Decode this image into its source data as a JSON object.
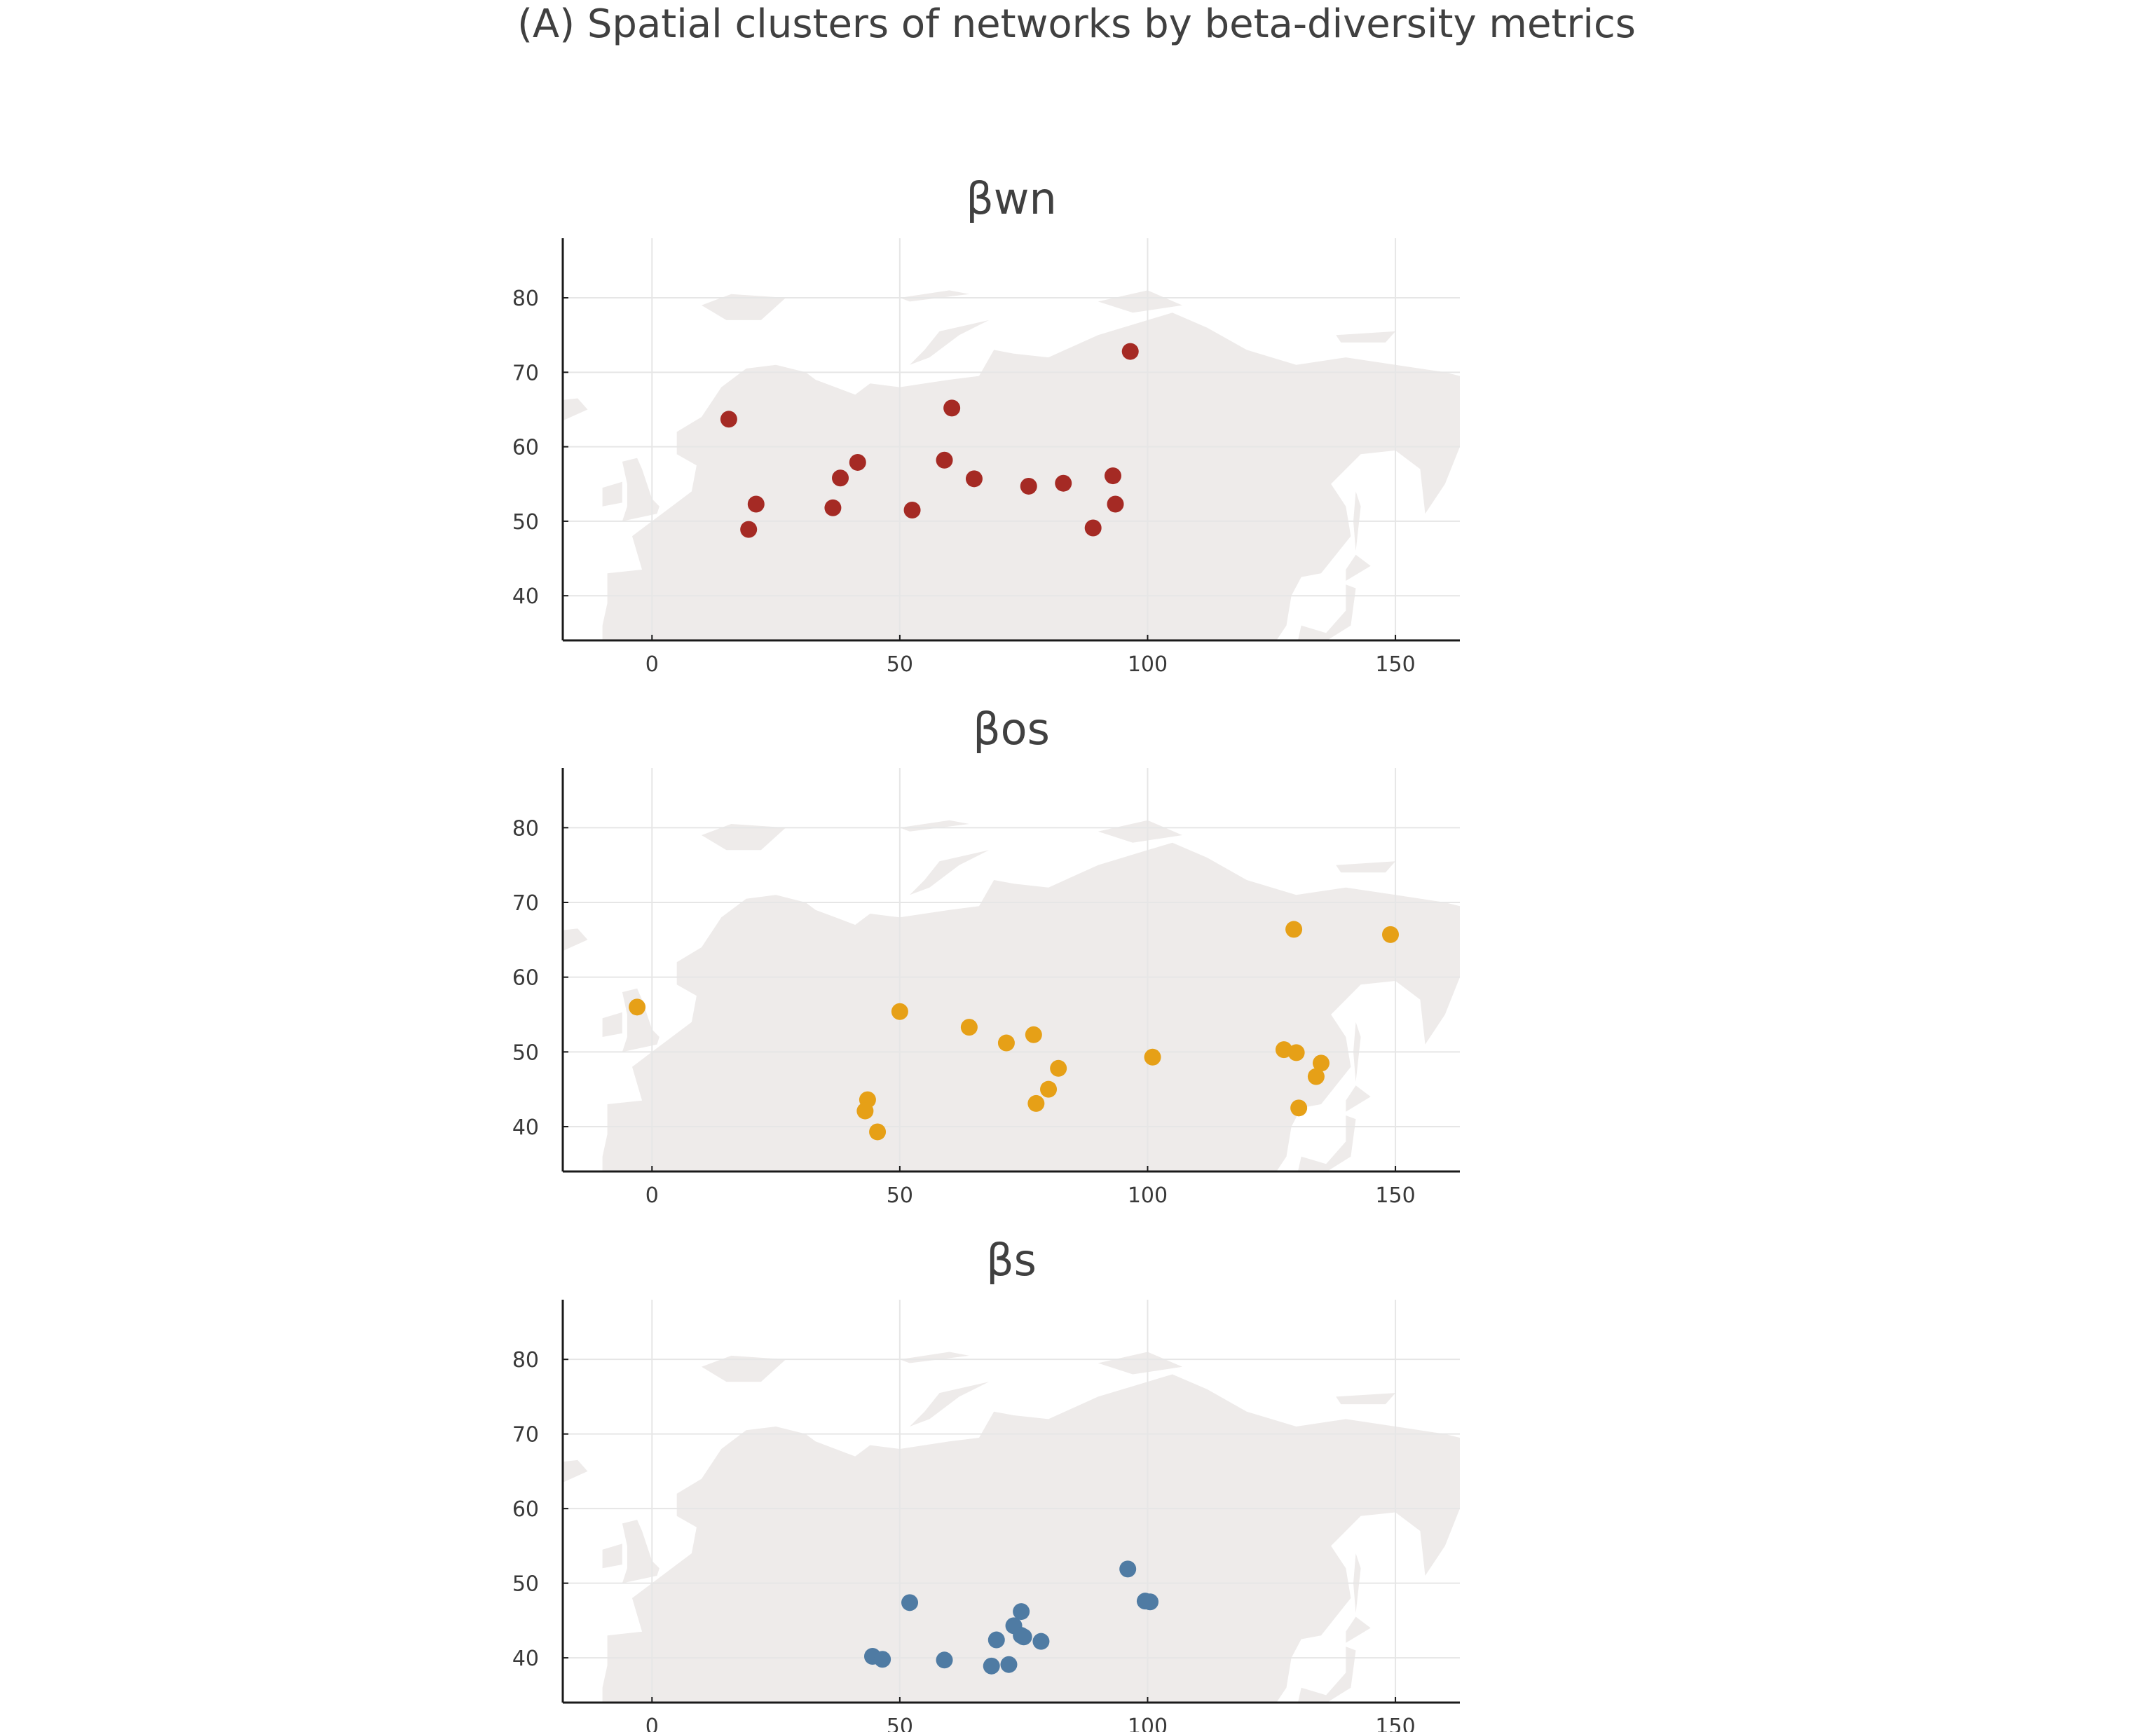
{
  "figure": {
    "title": "(A) Spatial clusters of networks by beta-diversity metrics"
  },
  "colors": {
    "land": "#eeebea",
    "grid": "#e6e6e6",
    "axis": "#1a1a1a"
  },
  "chart_data": [
    {
      "type": "scatter",
      "title": "βwn",
      "xlim": [
        -18,
        163
      ],
      "ylim": [
        34,
        88
      ],
      "xticks": [
        0,
        50,
        100,
        150
      ],
      "yticks": [
        40,
        50,
        60,
        70,
        80
      ],
      "grid": true,
      "basemap": "Eurasia land",
      "color": "#a52a24",
      "points": [
        {
          "x": 15.5,
          "y": 63.7
        },
        {
          "x": 21,
          "y": 52.3
        },
        {
          "x": 19.5,
          "y": 48.9
        },
        {
          "x": 36.5,
          "y": 51.8
        },
        {
          "x": 38,
          "y": 55.8
        },
        {
          "x": 41.5,
          "y": 57.9
        },
        {
          "x": 52.5,
          "y": 51.5
        },
        {
          "x": 59,
          "y": 58.2
        },
        {
          "x": 60.5,
          "y": 65.2
        },
        {
          "x": 65,
          "y": 55.7
        },
        {
          "x": 76,
          "y": 54.7
        },
        {
          "x": 83,
          "y": 55.1
        },
        {
          "x": 89,
          "y": 49.1
        },
        {
          "x": 93,
          "y": 56.1
        },
        {
          "x": 93.5,
          "y": 52.3
        },
        {
          "x": 96.5,
          "y": 72.8
        }
      ]
    },
    {
      "type": "scatter",
      "title": "βos",
      "xlim": [
        -18,
        163
      ],
      "ylim": [
        34,
        88
      ],
      "xticks": [
        0,
        50,
        100,
        150
      ],
      "yticks": [
        40,
        50,
        60,
        70,
        80
      ],
      "grid": true,
      "basemap": "Eurasia land",
      "color": "#e6a017",
      "points": [
        {
          "x": -3,
          "y": 56
        },
        {
          "x": 43.5,
          "y": 43.6
        },
        {
          "x": 43,
          "y": 42.1
        },
        {
          "x": 45.5,
          "y": 39.3
        },
        {
          "x": 50,
          "y": 55.4
        },
        {
          "x": 64,
          "y": 53.3
        },
        {
          "x": 71.5,
          "y": 51.2
        },
        {
          "x": 77,
          "y": 52.3
        },
        {
          "x": 82,
          "y": 47.8
        },
        {
          "x": 80,
          "y": 45
        },
        {
          "x": 77.5,
          "y": 43.1
        },
        {
          "x": 101,
          "y": 49.3
        },
        {
          "x": 127.5,
          "y": 50.3
        },
        {
          "x": 130,
          "y": 49.9
        },
        {
          "x": 135,
          "y": 48.5
        },
        {
          "x": 134,
          "y": 46.7
        },
        {
          "x": 130.5,
          "y": 42.5
        },
        {
          "x": 129.5,
          "y": 66.4
        },
        {
          "x": 149,
          "y": 65.7
        }
      ]
    },
    {
      "type": "scatter",
      "title": "βs",
      "xlim": [
        -18,
        163
      ],
      "ylim": [
        34,
        88
      ],
      "xticks": [
        0,
        50,
        100,
        150
      ],
      "yticks": [
        40,
        50,
        60,
        70,
        80
      ],
      "grid": true,
      "basemap": "Eurasia land",
      "color": "#4f7ba3",
      "points": [
        {
          "x": 44.5,
          "y": 40.2
        },
        {
          "x": 46.5,
          "y": 39.8
        },
        {
          "x": 52,
          "y": 47.4
        },
        {
          "x": 59,
          "y": 39.7
        },
        {
          "x": 68.5,
          "y": 38.9
        },
        {
          "x": 69.5,
          "y": 42.4
        },
        {
          "x": 72,
          "y": 39.1
        },
        {
          "x": 73,
          "y": 44.3
        },
        {
          "x": 74.5,
          "y": 46.2
        },
        {
          "x": 74.5,
          "y": 43
        },
        {
          "x": 75,
          "y": 42.8
        },
        {
          "x": 78.5,
          "y": 42.2
        },
        {
          "x": 96,
          "y": 51.9
        },
        {
          "x": 99.5,
          "y": 47.6
        },
        {
          "x": 100.5,
          "y": 47.5
        }
      ]
    }
  ]
}
